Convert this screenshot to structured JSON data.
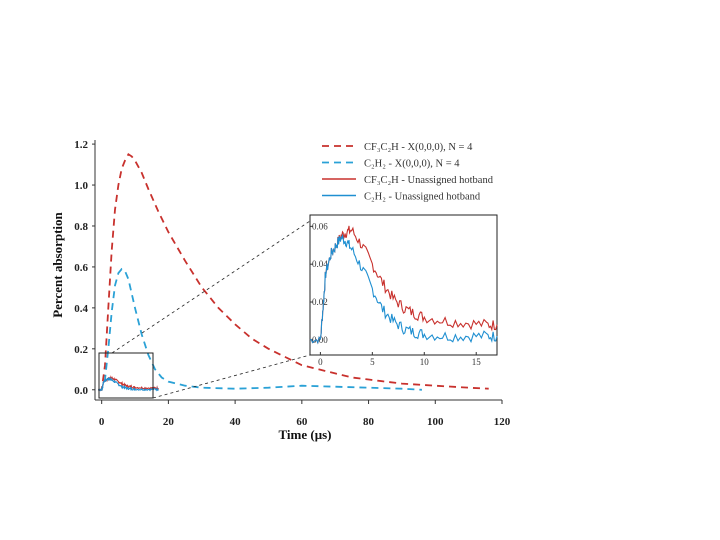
{
  "chart_data": {
    "type": "line",
    "xlabel": "Time (μs)",
    "ylabel": "Percent absorption",
    "xlim": [
      -2,
      120
    ],
    "ylim": [
      -0.05,
      1.22
    ],
    "xticks": [
      "0",
      "20",
      "40",
      "60",
      "80",
      "100",
      "120"
    ],
    "yticks": [
      "0.0",
      "0.2",
      "0.4",
      "0.6",
      "0.8",
      "1.0",
      "1.2"
    ],
    "grid": false,
    "legend_position": "top-right",
    "series": [
      {
        "name": "CF₃C₂H - X(0,0,0), N = 4",
        "style": "dashed",
        "color": "#c8312d",
        "x": [
          -1,
          0,
          1,
          2,
          3,
          4,
          5,
          6,
          7,
          8,
          9,
          10,
          12,
          14,
          17,
          20,
          25,
          30,
          35,
          40,
          45,
          50,
          55,
          60,
          65,
          70,
          75,
          80,
          85,
          90,
          100,
          110,
          116
        ],
        "y": [
          0,
          0,
          0.12,
          0.4,
          0.68,
          0.88,
          1.0,
          1.08,
          1.12,
          1.15,
          1.14,
          1.12,
          1.06,
          0.98,
          0.87,
          0.77,
          0.63,
          0.5,
          0.4,
          0.32,
          0.25,
          0.2,
          0.16,
          0.12,
          0.1,
          0.08,
          0.06,
          0.05,
          0.04,
          0.03,
          0.02,
          0.01,
          0.005
        ]
      },
      {
        "name": "C₂H₂ - X(0,0,0), N = 4",
        "style": "dashed",
        "color": "#2aa1d6",
        "x": [
          -1,
          0,
          1,
          2,
          3,
          4,
          5,
          6,
          7,
          8,
          9,
          10,
          12,
          14,
          16,
          18,
          20,
          25,
          30,
          40,
          50,
          60,
          70,
          80,
          90,
          96
        ],
        "y": [
          0,
          0,
          0.05,
          0.2,
          0.38,
          0.51,
          0.57,
          0.59,
          0.58,
          0.54,
          0.47,
          0.4,
          0.27,
          0.17,
          0.1,
          0.06,
          0.04,
          0.02,
          0.01,
          0.005,
          0.01,
          0.02,
          0.015,
          0.01,
          0.005,
          0.0
        ]
      },
      {
        "name": "CF₃C₂H - Unassigned hotband",
        "style": "solid",
        "color": "#c8312d",
        "x": [
          -1,
          0,
          0.3,
          0.5,
          1,
          1.5,
          2,
          2.5,
          3,
          4,
          5,
          6,
          7,
          8,
          9,
          10,
          12,
          14,
          16,
          17
        ],
        "y": [
          0,
          0,
          0.02,
          0.035,
          0.045,
          0.05,
          0.055,
          0.057,
          0.058,
          0.05,
          0.04,
          0.03,
          0.022,
          0.017,
          0.014,
          0.012,
          0.01,
          0.009,
          0.008,
          0.008
        ]
      },
      {
        "name": "C₂H₂ - Unassigned hotband",
        "style": "solid",
        "color": "#1f8fd1",
        "x": [
          -1,
          0,
          0.3,
          0.5,
          1,
          1.5,
          2,
          2.5,
          3,
          4,
          5,
          6,
          7,
          8,
          9,
          10,
          12,
          14,
          16,
          17
        ],
        "y": [
          0,
          0,
          0.02,
          0.035,
          0.045,
          0.05,
          0.054,
          0.052,
          0.048,
          0.038,
          0.027,
          0.016,
          0.01,
          0.006,
          0.004,
          0.003,
          0.002,
          0.002,
          0.002,
          0.002
        ]
      }
    ],
    "inset": {
      "xlim": [
        -1,
        17
      ],
      "ylim": [
        -0.008,
        0.066
      ],
      "xticks": [
        "0",
        "5",
        "10",
        "15"
      ],
      "yticks": [
        "0.00",
        "0.02",
        "0.04",
        "0.06"
      ]
    }
  }
}
